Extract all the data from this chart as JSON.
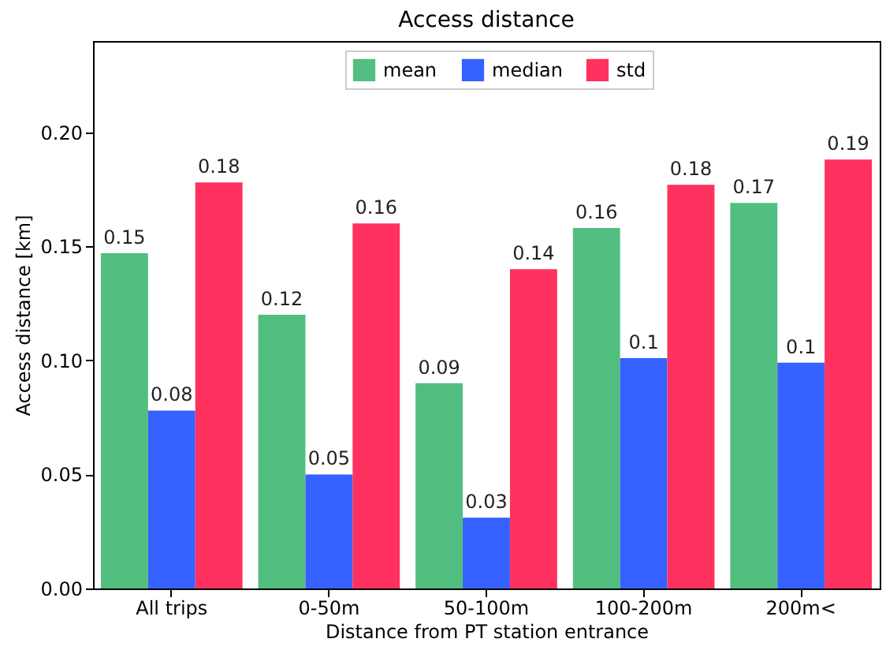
{
  "chart_data": {
    "type": "bar",
    "title": "Access distance",
    "xlabel": "Distance from PT station entrance",
    "ylabel": "Access distance [km]",
    "categories": [
      "All trips",
      "0-50m",
      "50-100m",
      "100-200m",
      "200m<"
    ],
    "series": [
      {
        "name": "mean",
        "color": "#52be80",
        "values": [
          0.147,
          0.12,
          0.09,
          0.158,
          0.169
        ],
        "value_labels": [
          "0.15",
          "0.12",
          "0.09",
          "0.16",
          "0.17"
        ]
      },
      {
        "name": "median",
        "color": "#3461ff",
        "values": [
          0.078,
          0.05,
          0.031,
          0.101,
          0.099
        ],
        "value_labels": [
          "0.08",
          "0.05",
          "0.03",
          "0.1",
          "0.1"
        ]
      },
      {
        "name": "std",
        "color": "#ff315e",
        "values": [
          0.178,
          0.16,
          0.14,
          0.177,
          0.188
        ],
        "value_labels": [
          "0.18",
          "0.16",
          "0.14",
          "0.18",
          "0.19"
        ]
      }
    ],
    "ylim": [
      0,
      0.24
    ],
    "yticks": [
      {
        "value": 0,
        "label": "0.00"
      },
      {
        "value": 0.05,
        "label": "0.05"
      },
      {
        "value": 0.1,
        "label": "0.10"
      },
      {
        "value": 0.15,
        "label": "0.15"
      },
      {
        "value": 0.2,
        "label": "0.20"
      }
    ],
    "legend": "top",
    "grid": false
  }
}
